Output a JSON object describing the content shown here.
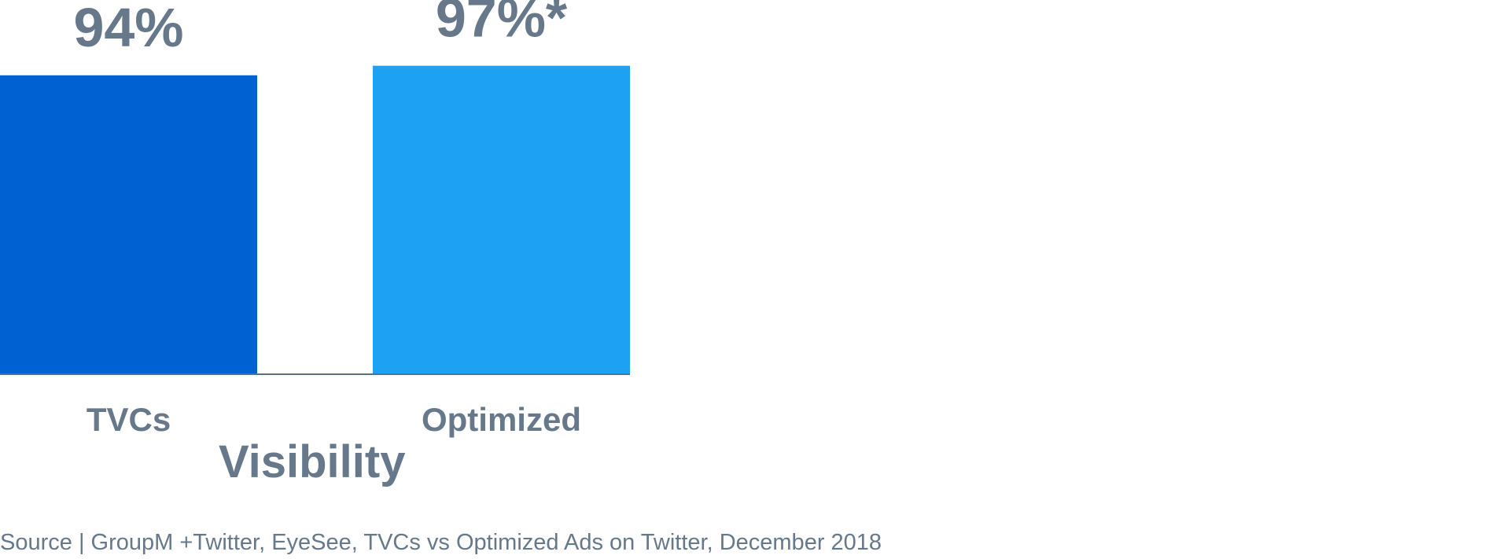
{
  "chart_data": {
    "type": "bar",
    "categories": [
      "TVCs",
      "Optimized"
    ],
    "values": [
      94,
      97
    ],
    "value_labels": [
      "94%",
      "97%*"
    ],
    "xlabel": "Visibility",
    "ylabel": "",
    "ylim": [
      0,
      100
    ],
    "grid": false,
    "legend": "none",
    "colors": [
      "#0062d2",
      "#1da1f2"
    ],
    "source": "Source | GroupM +Twitter, EyeSee, TVCs vs Optimized Ads on Twitter, December 2018"
  }
}
